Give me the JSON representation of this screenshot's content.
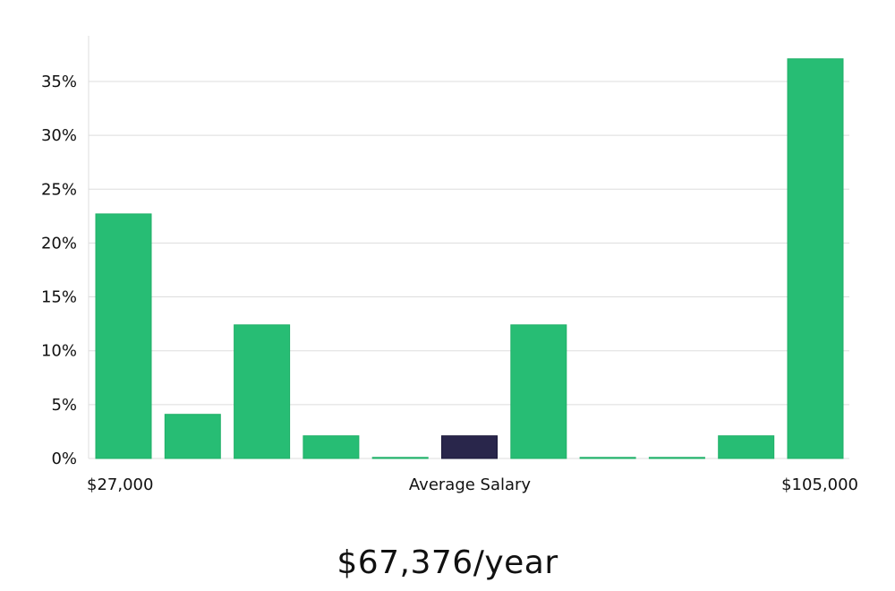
{
  "chart_data": {
    "type": "bar",
    "values": [
      22.7,
      4.1,
      12.4,
      2.1,
      0.0,
      2.1,
      12.4,
      0.0,
      0.0,
      2.1,
      37.1
    ],
    "highlight_index": 5,
    "ylim": [
      0,
      38
    ],
    "yticks": [
      0,
      5,
      10,
      15,
      20,
      25,
      30,
      35
    ],
    "ytick_labels": [
      "0%",
      "5%",
      "10%",
      "15%",
      "20%",
      "25%",
      "30%",
      "35%"
    ],
    "x_min_label": "$27,000",
    "x_mid_label": "Average Salary",
    "x_max_label": "$105,000",
    "bar_color": "#27bd74",
    "highlight_color": "#29264b",
    "grid": true
  },
  "salary_text": "$67,376/year"
}
